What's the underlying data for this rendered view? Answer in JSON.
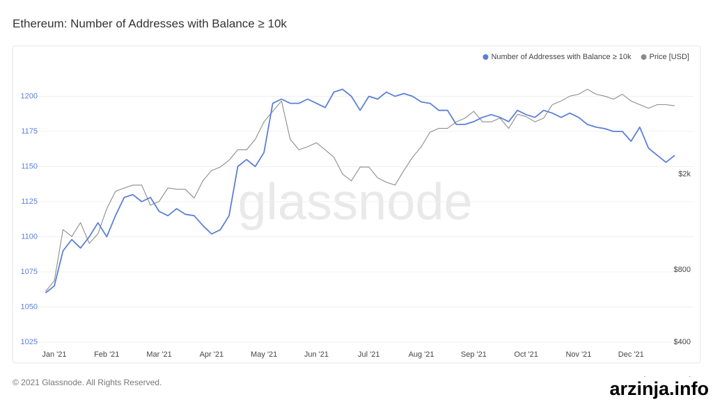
{
  "chart_data": {
    "type": "line",
    "title": "Ethereum: Number of Addresses with Balance ≥ 10k",
    "footer": "© 2021 Glassnode. All Rights Reserved.",
    "watermark": "glassnode",
    "logo": "glassnode",
    "overlay_watermark": "arzinja.info",
    "categories": [
      null,
      "Jan '21",
      null,
      null,
      null,
      null,
      null,
      "Feb '21",
      null,
      null,
      null,
      null,
      null,
      "Mar '21",
      null,
      null,
      null,
      null,
      null,
      "Apr '21",
      null,
      null,
      null,
      null,
      null,
      "May '21",
      null,
      null,
      null,
      null,
      null,
      "Jun '21",
      null,
      null,
      null,
      null,
      null,
      "Jul '21",
      null,
      null,
      null,
      null,
      null,
      "Aug '21",
      null,
      null,
      null,
      null,
      null,
      "Sep '21",
      null,
      null,
      null,
      null,
      null,
      "Oct '21",
      null,
      null,
      null,
      null,
      null,
      "Nov '21",
      null,
      null,
      null,
      null,
      null,
      "Dec '21",
      null,
      null,
      null,
      null,
      null
    ],
    "series": [
      {
        "name": "Number of Addresses with Balance ≥ 10k",
        "color": "#5b7fd6",
        "axis": "y",
        "values": [
          1060,
          1065,
          1090,
          1098,
          1092,
          1100,
          1110,
          1100,
          1115,
          1128,
          1130,
          1125,
          1128,
          1118,
          1115,
          1120,
          1116,
          1115,
          1108,
          1102,
          1105,
          1115,
          1150,
          1155,
          1150,
          1160,
          1195,
          1198,
          1195,
          1195,
          1198,
          1195,
          1192,
          1203,
          1205,
          1200,
          1190,
          1200,
          1198,
          1203,
          1200,
          1202,
          1200,
          1196,
          1195,
          1190,
          1190,
          1180,
          1180,
          1182,
          1185,
          1187,
          1185,
          1182,
          1190,
          1187,
          1185,
          1190,
          1188,
          1185,
          1188,
          1185,
          1180,
          1178,
          1177,
          1175,
          1175,
          1168,
          1178,
          1163,
          1158,
          1153,
          1158
        ]
      },
      {
        "name": "Price [USD]",
        "color": "#8c8c8c",
        "axis": "y2",
        "values": [
          650,
          720,
          1175,
          1100,
          1256,
          1030,
          1130,
          1435,
          1695,
          1750,
          1800,
          1800,
          1485,
          1540,
          1750,
          1730,
          1730,
          1590,
          1875,
          2070,
          2140,
          2285,
          2525,
          2525,
          2790,
          3300,
          3650,
          4030,
          2790,
          2525,
          2600,
          2700,
          2525,
          2350,
          2000,
          1875,
          2140,
          2140,
          1930,
          1850,
          1800,
          2070,
          2350,
          2600,
          2990,
          3100,
          3100,
          3300,
          3420,
          3650,
          3300,
          3300,
          3420,
          3100,
          3550,
          3470,
          3300,
          3420,
          3890,
          4030,
          4220,
          4300,
          4510,
          4300,
          4220,
          4100,
          4300,
          4030,
          3890,
          3760,
          3890,
          3890,
          3850
        ]
      }
    ],
    "ylim": [
      1025,
      1225
    ],
    "yticks": [
      1025,
      1050,
      1075,
      1100,
      1125,
      1150,
      1175,
      1200
    ],
    "y2lim": [
      400,
      5900
    ],
    "y2scale": "log",
    "y2ticks": [
      {
        "value": 400,
        "label": "$400"
      },
      {
        "value": 800,
        "label": "$800"
      },
      {
        "value": 2000,
        "label": "$2k"
      }
    ],
    "grid": true,
    "legend": "top-right"
  }
}
